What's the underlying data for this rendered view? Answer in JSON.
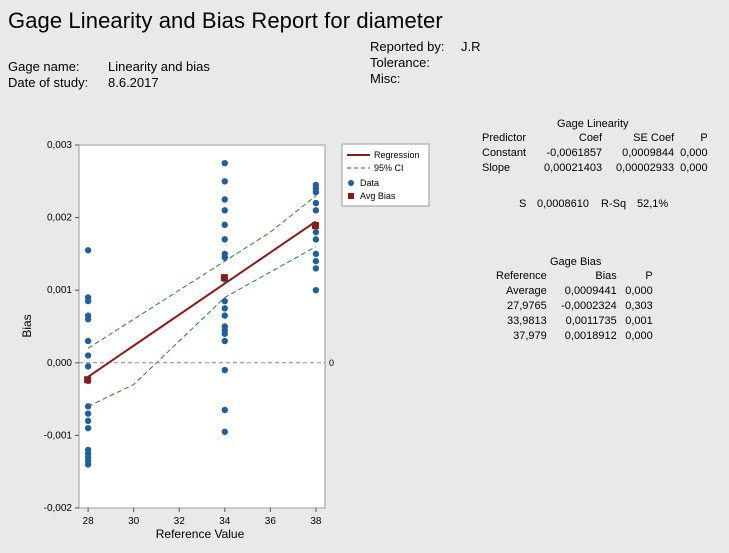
{
  "report": {
    "title": "Gage Linearity and Bias Report for diameter",
    "gage_name_label": "Gage name:",
    "gage_name": "Linearity and bias",
    "date_label": "Date of study:",
    "date": "8.6.2017",
    "reported_by_label": "Reported by:",
    "reported_by": "J.R",
    "tolerance_label": "Tolerance:",
    "misc_label": "Misc:"
  },
  "linearity": {
    "title": "Gage Linearity",
    "headers": [
      "Predictor",
      "Coef",
      "SE Coef",
      "P"
    ],
    "rows": [
      [
        "Constant",
        "-0,0061857",
        "0,0009844",
        "0,000"
      ],
      [
        "Slope",
        "0,00021403",
        "0,00002933",
        "0,000"
      ]
    ],
    "s_label": "S",
    "s_value": "0,0008610",
    "rsq_label": "R-Sq",
    "rsq_value": "52,1%"
  },
  "bias": {
    "title": "Gage Bias",
    "headers": [
      "Reference",
      "Bias",
      "P"
    ],
    "rows": [
      [
        "Average",
        "0,0009441",
        "0,000"
      ],
      [
        "27,9765",
        "-0,0002324",
        "0,303"
      ],
      [
        "33,9813",
        "0,0011735",
        "0,001"
      ],
      [
        "37,979",
        "0,0018912",
        "0,000"
      ]
    ]
  },
  "chart_data": {
    "type": "scatter",
    "xlabel": "Reference Value",
    "ylabel": "Bias",
    "xlim": [
      27.6,
      38.4
    ],
    "ylim": [
      -0.002,
      0.003
    ],
    "x_ticks": [
      "28",
      "30",
      "32",
      "34",
      "36",
      "38"
    ],
    "y_ticks": [
      "-0,002",
      "-0,001",
      "0,000",
      "0,001",
      "0,002",
      "0,003"
    ],
    "x_tick_values": [
      28,
      30,
      32,
      34,
      36,
      38
    ],
    "y_tick_values": [
      -0.002,
      -0.001,
      0,
      0.001,
      0.002,
      0.003
    ],
    "reference_line": {
      "y": 0,
      "label": "0"
    },
    "legend": {
      "placement": "outside-right",
      "entries": [
        "Regression",
        "95% CI",
        "Data",
        "Avg Bias"
      ]
    },
    "colors": {
      "regression": "#8b1a1a",
      "ci": "#1f8a1f",
      "data": "#1f5f9f",
      "avg_bias": "#8b1a1a"
    },
    "regression": {
      "intercept": -0.0061857,
      "slope": 0.00021403
    },
    "ci_band": {
      "x": [
        28,
        30,
        32,
        34,
        36,
        38
      ],
      "upper": [
        0.0002,
        0.0006,
        0.001,
        0.0014,
        0.0018,
        0.0023
      ],
      "lower": [
        -0.0006,
        -0.0003,
        0.0003,
        0.0009,
        0.00125,
        0.0016
      ]
    },
    "data_points": {
      "x": [
        28,
        28,
        28,
        28,
        28,
        28,
        28,
        28,
        28,
        28,
        28,
        28,
        28,
        28,
        28,
        28,
        28,
        28,
        34,
        34,
        34,
        34,
        34,
        34,
        34,
        34,
        34,
        34,
        34,
        34,
        34,
        34,
        34,
        34,
        34,
        34,
        34,
        38,
        38,
        38,
        38,
        38,
        38,
        38,
        38,
        38,
        38,
        38,
        38,
        38
      ],
      "y": [
        0.00155,
        0.0009,
        0.00085,
        0.00065,
        0.0006,
        0.0003,
        0.0001,
        -5e-05,
        -0.00025,
        -0.0006,
        -0.0007,
        -0.0008,
        -0.0009,
        -0.0012,
        -0.00125,
        -0.0013,
        -0.00135,
        -0.0014,
        0.00275,
        0.0025,
        0.00225,
        0.0021,
        0.0019,
        0.0017,
        0.0015,
        0.00145,
        0.00085,
        0.00075,
        0.00065,
        0.0005,
        0.00045,
        0.0004,
        0.0003,
        -0.0001,
        -0.00065,
        -0.00095,
        0.00115,
        0.00245,
        0.0024,
        0.00235,
        0.0022,
        0.0021,
        0.0019,
        0.0018,
        0.0017,
        0.0015,
        0.0014,
        0.0013,
        0.001,
        0.0019
      ]
    },
    "avg_bias": {
      "x": [
        27.9765,
        33.9813,
        37.979
      ],
      "y": [
        -0.0002324,
        0.0011735,
        0.0018912
      ]
    }
  }
}
